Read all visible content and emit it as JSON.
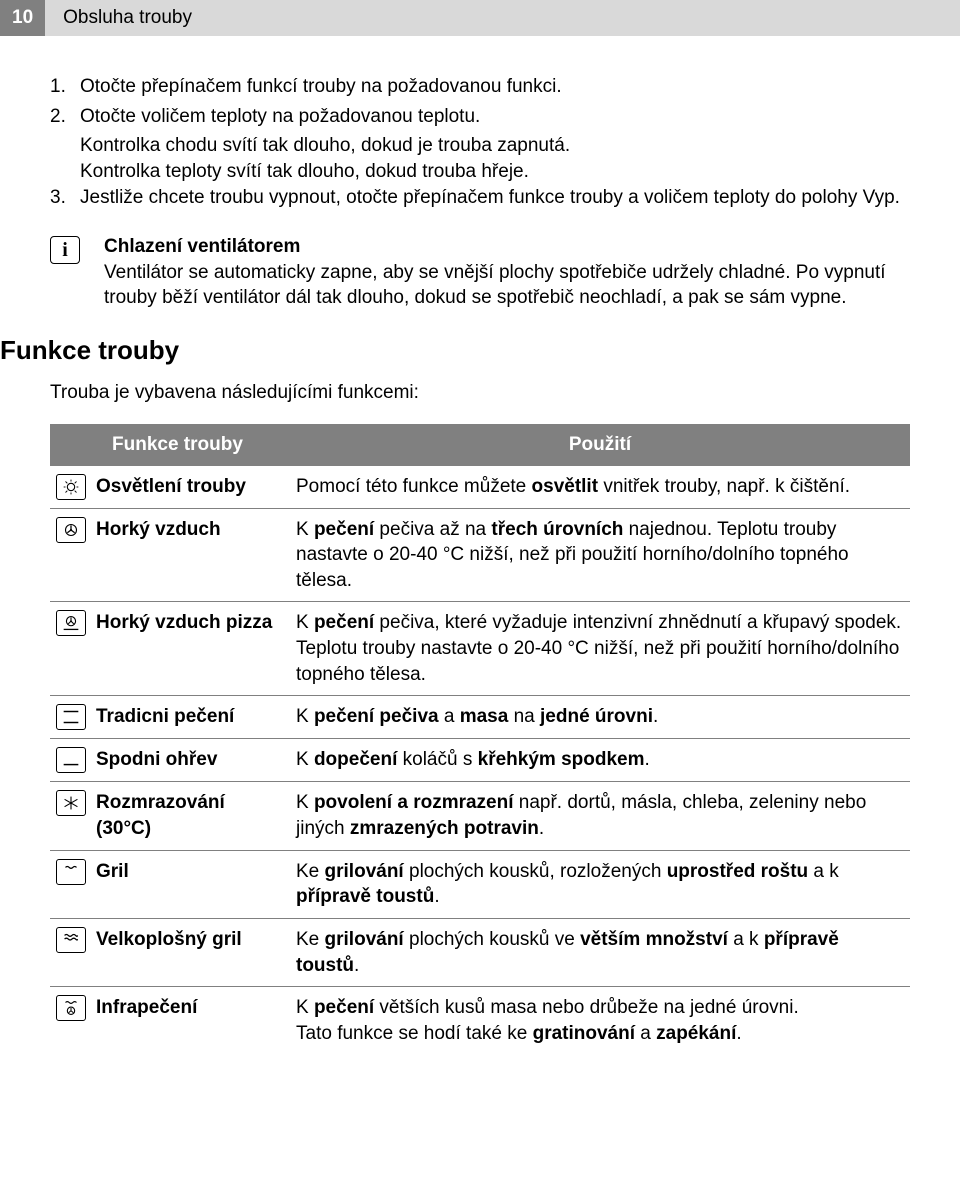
{
  "header": {
    "page_num": "10",
    "title": "Obsluha trouby"
  },
  "steps": [
    {
      "n": "1.",
      "t": "Otočte přepínačem funkcí trouby na požadovanou funkci."
    },
    {
      "n": "2.",
      "t": "Otočte voličem teploty na požadovanou teplotu."
    }
  ],
  "indent_lines": [
    "Kontrolka chodu svítí tak dlouho, dokud je trouba zapnutá.",
    "Kontrolka teploty svítí tak dlouho, dokud trouba hřeje."
  ],
  "step3": {
    "n": "3.",
    "t": "Jestliže chcete troubu vypnout, otočte přepínačem funkce trouby a voličem teploty do polohy Vyp."
  },
  "info": {
    "heading": "Chlazení ventilátorem",
    "body": "Ventilátor se automaticky zapne, aby se vnější plochy spotřebiče udržely chladné. Po vypnutí trouby běží ventilátor dál tak dlouho, dokud se spotřebič neochladí, a pak se sám vypne."
  },
  "section_heading": "Funkce trouby",
  "section_sub": "Trouba je vybavena následujícími funkcemi:",
  "table": {
    "headers": [
      "Funkce trouby",
      "Použití"
    ],
    "rows": [
      {
        "icon": "light",
        "name": "Osvětlení trouby",
        "use": "Pomocí této funkce můžete <b>osvětlit</b> vnitřek trouby, např. k čištění."
      },
      {
        "icon": "fan",
        "name": "Horký vzduch",
        "use": "K <b>pečení</b> pečiva až na <b>třech úrovních</b> najednou. Teplotu trouby nastavte o 20-40 °C nižší, než při použití horního/dolního topného tělesa."
      },
      {
        "icon": "fan-bottom",
        "name": "Horký vzduch pizza",
        "use": "K <b>pečení</b> pečiva, které vyžaduje intenzivní zhnědnutí a křupavý spodek.<br>Teplotu trouby nastavte o 20-40 °C nižší, než při použití horního/dolního topného tělesa."
      },
      {
        "icon": "top-bottom",
        "name": "Tradicni pečení",
        "use": "K <b>pečení pečiva</b> a <b>masa</b> na <b>jedné úrovni</b>."
      },
      {
        "icon": "bottom",
        "name": "Spodni ohřev",
        "use": "K <b>dopečení</b>  koláčů s <b>křehkým spodkem</b>."
      },
      {
        "icon": "defrost",
        "name": "Rozmrazování (30°C)",
        "use": "K <b>povolení a rozmrazení</b>  např. dortů, másla, chleba, zeleniny nebo jiných  <b>zmrazených potravin</b>."
      },
      {
        "icon": "grill",
        "name": "Gril",
        "use": "Ke <b>grilování</b> plochých kousků, rozložených <b>uprostřed roštu</b>  a k <b>přípravě toustů</b>."
      },
      {
        "icon": "grill-large",
        "name": "Velkoplošný gril",
        "use": "Ke <b>grilování</b> plochých kousků ve <b>větším množství</b> a k <b>přípravě toustů</b>."
      },
      {
        "icon": "infra",
        "name": "Infrapečení",
        "use": "K <b>pečení</b> větších kusů masa nebo drůbeže na jedné úrovni.<br>Tato funkce se hodí také ke <b>gratinování</b> a <b>zapékání</b>."
      }
    ]
  }
}
